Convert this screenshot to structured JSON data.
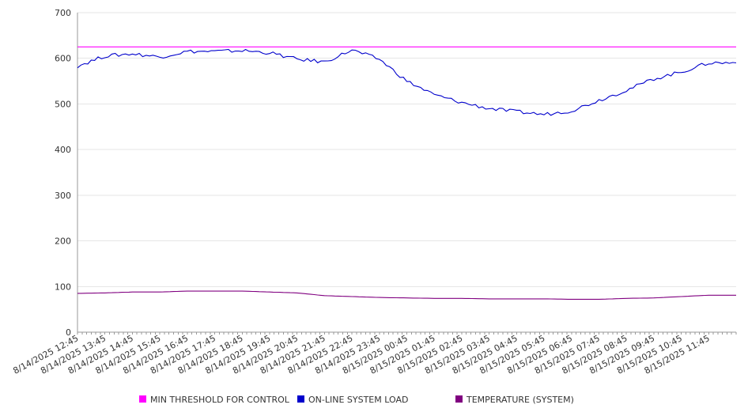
{
  "chart_data": {
    "type": "line",
    "ylim": [
      0,
      700
    ],
    "yticks": [
      0,
      100,
      200,
      300,
      400,
      500,
      600,
      700
    ],
    "grid": true,
    "legend_position": "bottom",
    "x_tick_labels": [
      "8/14/2025 12:45",
      "8/14/2025 13:45",
      "8/14/2025 14:45",
      "8/14/2025 15:45",
      "8/14/2025 16:45",
      "8/14/2025 17:45",
      "8/14/2025 18:45",
      "8/14/2025 19:45",
      "8/14/2025 20:45",
      "8/14/2025 21:45",
      "8/14/2025 22:45",
      "8/14/2025 23:45",
      "8/15/2025 00:45",
      "8/15/2025 01:45",
      "8/15/2025 02:45",
      "8/15/2025 03:45",
      "8/15/2025 04:45",
      "8/15/2025 05:45",
      "8/15/2025 06:45",
      "8/15/2025 07:45",
      "8/15/2025 08:45",
      "8/15/2025 09:45",
      "8/15/2025 10:45",
      "8/15/2025 11:45"
    ],
    "series": [
      {
        "name": "MIN THRESHOLD FOR CONTROL",
        "color": "#ff00ff",
        "values": [
          625,
          625,
          625,
          625,
          625,
          625,
          625,
          625,
          625,
          625,
          625,
          625,
          625,
          625,
          625,
          625,
          625,
          625,
          625,
          625,
          625,
          625,
          625,
          625
        ]
      },
      {
        "name": "ON-LINE SYSTEM LOAD",
        "color": "#0000cc",
        "values": [
          583,
          605,
          610,
          603,
          615,
          615,
          617,
          612,
          598,
          592,
          618,
          598,
          550,
          520,
          503,
          490,
          483,
          477,
          485,
          508,
          530,
          555,
          570,
          590
        ]
      },
      {
        "name": "TEMPERATURE (SYSTEM)",
        "color": "#800080",
        "values": [
          85,
          86,
          88,
          88,
          90,
          90,
          90,
          88,
          86,
          80,
          78,
          76,
          75,
          74,
          74,
          73,
          73,
          73,
          72,
          72,
          74,
          75,
          78,
          81
        ]
      }
    ],
    "legend": [
      "MIN THRESHOLD FOR CONTROL",
      "ON-LINE SYSTEM LOAD",
      "TEMPERATURE (SYSTEM)"
    ]
  }
}
